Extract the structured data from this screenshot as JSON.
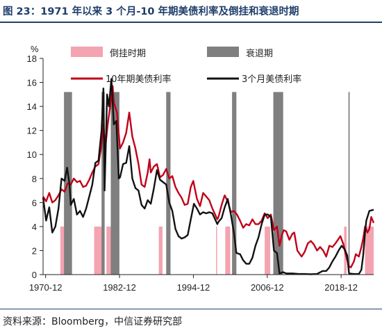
{
  "header": {
    "title": "图 23：1971 年以来 3 个月-10 年期美债利率及倒挂和衰退时期"
  },
  "footer": {
    "source": "资料来源：Bloomberg，中信证券研究部"
  },
  "chart_data": {
    "type": "line",
    "yunit": "%",
    "xlabel": "",
    "ylabel": "%",
    "xlim": [
      1970.5,
      2024.2
    ],
    "ylim": [
      0,
      18
    ],
    "yticks": [
      "0",
      "2",
      "4",
      "6",
      "8",
      "10",
      "12",
      "14",
      "16",
      "18"
    ],
    "xticks": [
      "1970-12",
      "1982-12",
      "1994-12",
      "2006-12",
      "2018-12"
    ],
    "grid": false,
    "legend": [
      {
        "name": "倒挂时期",
        "kind": "bar",
        "color": "#f4a3b0"
      },
      {
        "name": "衰退期",
        "kind": "bar",
        "color": "#7f7f7f"
      },
      {
        "name": "10年期美债利率",
        "kind": "line",
        "color": "#c00018"
      },
      {
        "name": "3个月美债利率",
        "kind": "line",
        "color": "#111111"
      }
    ],
    "bands": {
      "recession": [
        [
          1973.9,
          1975.2
        ],
        [
          1980.0,
          1980.5
        ],
        [
          1981.5,
          1982.9
        ],
        [
          1990.5,
          1991.2
        ],
        [
          2001.2,
          2001.9
        ],
        [
          2007.9,
          2009.5
        ],
        [
          2020.1,
          2020.3
        ]
      ],
      "inversion": [
        [
          1973.3,
          1974.6
        ],
        [
          1978.8,
          1980.4
        ],
        [
          1980.8,
          1982.0
        ],
        [
          1989.3,
          1989.9
        ],
        [
          1998.6,
          1998.7
        ],
        [
          2000.1,
          2000.9
        ],
        [
          2006.5,
          2007.4
        ],
        [
          2019.4,
          2019.8
        ],
        [
          2022.8,
          2024.2
        ]
      ]
    },
    "series": [
      {
        "name": "10年期美债利率",
        "color": "#c00018",
        "points": [
          [
            1970.5,
            6.5
          ],
          [
            1971.0,
            6.1
          ],
          [
            1971.5,
            6.8
          ],
          [
            1972.0,
            6.0
          ],
          [
            1972.5,
            6.2
          ],
          [
            1973.0,
            6.6
          ],
          [
            1973.5,
            7.1
          ],
          [
            1974.0,
            6.9
          ],
          [
            1974.5,
            7.6
          ],
          [
            1975.0,
            7.5
          ],
          [
            1975.5,
            8.0
          ],
          [
            1976.0,
            7.7
          ],
          [
            1976.5,
            7.8
          ],
          [
            1977.0,
            7.3
          ],
          [
            1977.5,
            7.4
          ],
          [
            1978.0,
            7.9
          ],
          [
            1978.5,
            8.5
          ],
          [
            1979.0,
            9.0
          ],
          [
            1979.5,
            9.2
          ],
          [
            1980.0,
            10.8
          ],
          [
            1980.3,
            12.5
          ],
          [
            1980.6,
            10.5
          ],
          [
            1981.0,
            12.5
          ],
          [
            1981.4,
            14.0
          ],
          [
            1981.8,
            15.7
          ],
          [
            1982.0,
            14.3
          ],
          [
            1982.5,
            13.5
          ],
          [
            1983.0,
            10.5
          ],
          [
            1983.5,
            11.0
          ],
          [
            1984.0,
            11.8
          ],
          [
            1984.5,
            13.5
          ],
          [
            1985.0,
            11.5
          ],
          [
            1985.5,
            10.5
          ],
          [
            1986.0,
            9.2
          ],
          [
            1986.5,
            7.5
          ],
          [
            1987.0,
            7.3
          ],
          [
            1987.5,
            8.5
          ],
          [
            1987.8,
            9.6
          ],
          [
            1988.0,
            8.5
          ],
          [
            1988.5,
            9.0
          ],
          [
            1989.0,
            9.2
          ],
          [
            1989.5,
            8.1
          ],
          [
            1990.0,
            8.3
          ],
          [
            1990.5,
            8.8
          ],
          [
            1991.0,
            8.0
          ],
          [
            1991.5,
            8.2
          ],
          [
            1992.0,
            7.3
          ],
          [
            1992.5,
            6.8
          ],
          [
            1993.0,
            6.4
          ],
          [
            1993.5,
            5.8
          ],
          [
            1994.0,
            5.9
          ],
          [
            1994.5,
            7.3
          ],
          [
            1994.9,
            7.8
          ],
          [
            1995.5,
            6.3
          ],
          [
            1996.0,
            5.7
          ],
          [
            1996.5,
            6.8
          ],
          [
            1997.0,
            6.5
          ],
          [
            1997.5,
            6.2
          ],
          [
            1998.0,
            5.5
          ],
          [
            1998.8,
            4.6
          ],
          [
            1999.0,
            4.8
          ],
          [
            1999.5,
            5.8
          ],
          [
            2000.0,
            6.6
          ],
          [
            2000.5,
            6.1
          ],
          [
            2001.0,
            5.2
          ],
          [
            2001.5,
            5.3
          ],
          [
            2002.0,
            5.0
          ],
          [
            2002.5,
            4.5
          ],
          [
            2003.0,
            3.9
          ],
          [
            2003.5,
            4.2
          ],
          [
            2004.0,
            4.1
          ],
          [
            2004.5,
            4.6
          ],
          [
            2005.0,
            4.2
          ],
          [
            2005.5,
            4.2
          ],
          [
            2006.0,
            4.5
          ],
          [
            2006.5,
            5.1
          ],
          [
            2007.0,
            4.7
          ],
          [
            2007.5,
            5.0
          ],
          [
            2008.0,
            3.7
          ],
          [
            2008.5,
            4.0
          ],
          [
            2008.9,
            2.4
          ],
          [
            2009.3,
            3.3
          ],
          [
            2009.6,
            3.7
          ],
          [
            2010.0,
            3.6
          ],
          [
            2010.5,
            2.9
          ],
          [
            2011.0,
            3.4
          ],
          [
            2011.3,
            3.5
          ],
          [
            2011.8,
            2.0
          ],
          [
            2012.5,
            1.5
          ],
          [
            2013.0,
            1.9
          ],
          [
            2013.5,
            2.6
          ],
          [
            2014.0,
            2.8
          ],
          [
            2014.5,
            2.5
          ],
          [
            2015.0,
            2.0
          ],
          [
            2015.5,
            2.3
          ],
          [
            2016.0,
            2.0
          ],
          [
            2016.5,
            1.5
          ],
          [
            2017.0,
            2.4
          ],
          [
            2017.5,
            2.3
          ],
          [
            2018.0,
            2.6
          ],
          [
            2018.8,
            3.2
          ],
          [
            2019.3,
            2.5
          ],
          [
            2019.7,
            1.6
          ],
          [
            2020.2,
            0.7
          ],
          [
            2020.5,
            0.6
          ],
          [
            2021.0,
            1.1
          ],
          [
            2021.3,
            1.7
          ],
          [
            2021.8,
            1.5
          ],
          [
            2022.2,
            2.3
          ],
          [
            2022.5,
            3.0
          ],
          [
            2022.8,
            4.0
          ],
          [
            2023.2,
            3.5
          ],
          [
            2023.5,
            3.8
          ],
          [
            2023.8,
            4.8
          ],
          [
            2024.2,
            4.3
          ]
        ]
      },
      {
        "name": "3个月美债利率",
        "color": "#111111",
        "points": [
          [
            1970.5,
            6.4
          ],
          [
            1971.0,
            4.5
          ],
          [
            1971.5,
            5.6
          ],
          [
            1972.0,
            3.5
          ],
          [
            1972.5,
            4.0
          ],
          [
            1973.0,
            5.5
          ],
          [
            1973.5,
            8.0
          ],
          [
            1974.0,
            7.8
          ],
          [
            1974.4,
            8.9
          ],
          [
            1974.8,
            7.5
          ],
          [
            1975.0,
            5.8
          ],
          [
            1975.5,
            6.3
          ],
          [
            1976.0,
            5.0
          ],
          [
            1976.5,
            5.3
          ],
          [
            1977.0,
            4.8
          ],
          [
            1977.5,
            5.5
          ],
          [
            1978.0,
            6.5
          ],
          [
            1978.5,
            7.5
          ],
          [
            1979.0,
            9.3
          ],
          [
            1979.5,
            9.5
          ],
          [
            1980.0,
            12.0
          ],
          [
            1980.3,
            15.5
          ],
          [
            1980.5,
            7.0
          ],
          [
            1980.9,
            15.0
          ],
          [
            1981.2,
            14.0
          ],
          [
            1981.6,
            16.3
          ],
          [
            1982.0,
            12.5
          ],
          [
            1982.4,
            12.8
          ],
          [
            1982.8,
            8.0
          ],
          [
            1983.0,
            8.1
          ],
          [
            1983.5,
            9.2
          ],
          [
            1984.0,
            9.3
          ],
          [
            1984.5,
            10.7
          ],
          [
            1985.0,
            8.0
          ],
          [
            1985.5,
            7.2
          ],
          [
            1986.0,
            7.0
          ],
          [
            1986.5,
            5.8
          ],
          [
            1987.0,
            5.5
          ],
          [
            1987.5,
            6.2
          ],
          [
            1988.0,
            5.9
          ],
          [
            1988.5,
            7.2
          ],
          [
            1989.0,
            8.7
          ],
          [
            1989.5,
            7.9
          ],
          [
            1990.0,
            7.7
          ],
          [
            1990.5,
            7.5
          ],
          [
            1991.0,
            6.0
          ],
          [
            1991.5,
            5.3
          ],
          [
            1992.0,
            3.8
          ],
          [
            1992.5,
            3.2
          ],
          [
            1993.0,
            3.0
          ],
          [
            1993.5,
            3.1
          ],
          [
            1994.0,
            3.3
          ],
          [
            1994.5,
            4.6
          ],
          [
            1995.0,
            5.9
          ],
          [
            1995.5,
            5.5
          ],
          [
            1996.0,
            5.0
          ],
          [
            1996.5,
            5.2
          ],
          [
            1997.0,
            5.1
          ],
          [
            1997.5,
            5.2
          ],
          [
            1998.0,
            5.1
          ],
          [
            1998.8,
            4.2
          ],
          [
            1999.0,
            4.4
          ],
          [
            1999.5,
            4.7
          ],
          [
            2000.0,
            5.6
          ],
          [
            2000.5,
            6.3
          ],
          [
            2001.0,
            5.0
          ],
          [
            2001.5,
            3.5
          ],
          [
            2001.9,
            1.8
          ],
          [
            2002.5,
            1.7
          ],
          [
            2003.0,
            1.2
          ],
          [
            2003.5,
            0.9
          ],
          [
            2004.0,
            0.9
          ],
          [
            2004.5,
            1.4
          ],
          [
            2005.0,
            2.4
          ],
          [
            2005.5,
            3.1
          ],
          [
            2006.0,
            4.2
          ],
          [
            2006.5,
            5.0
          ],
          [
            2007.0,
            5.0
          ],
          [
            2007.5,
            4.8
          ],
          [
            2008.0,
            2.0
          ],
          [
            2008.5,
            1.8
          ],
          [
            2008.9,
            0.1
          ],
          [
            2009.5,
            0.2
          ],
          [
            2010.0,
            0.1
          ],
          [
            2011.0,
            0.1
          ],
          [
            2012.0,
            0.05
          ],
          [
            2013.0,
            0.05
          ],
          [
            2014.0,
            0.03
          ],
          [
            2015.0,
            0.05
          ],
          [
            2015.9,
            0.3
          ],
          [
            2016.5,
            0.3
          ],
          [
            2017.0,
            0.6
          ],
          [
            2017.5,
            1.1
          ],
          [
            2018.0,
            1.5
          ],
          [
            2018.5,
            2.0
          ],
          [
            2019.0,
            2.4
          ],
          [
            2019.5,
            2.1
          ],
          [
            2019.9,
            1.6
          ],
          [
            2020.2,
            0.1
          ],
          [
            2021.0,
            0.05
          ],
          [
            2021.8,
            0.05
          ],
          [
            2022.2,
            0.4
          ],
          [
            2022.5,
            1.6
          ],
          [
            2022.8,
            3.5
          ],
          [
            2023.0,
            4.5
          ],
          [
            2023.5,
            5.3
          ],
          [
            2024.2,
            5.4
          ]
        ]
      }
    ]
  }
}
